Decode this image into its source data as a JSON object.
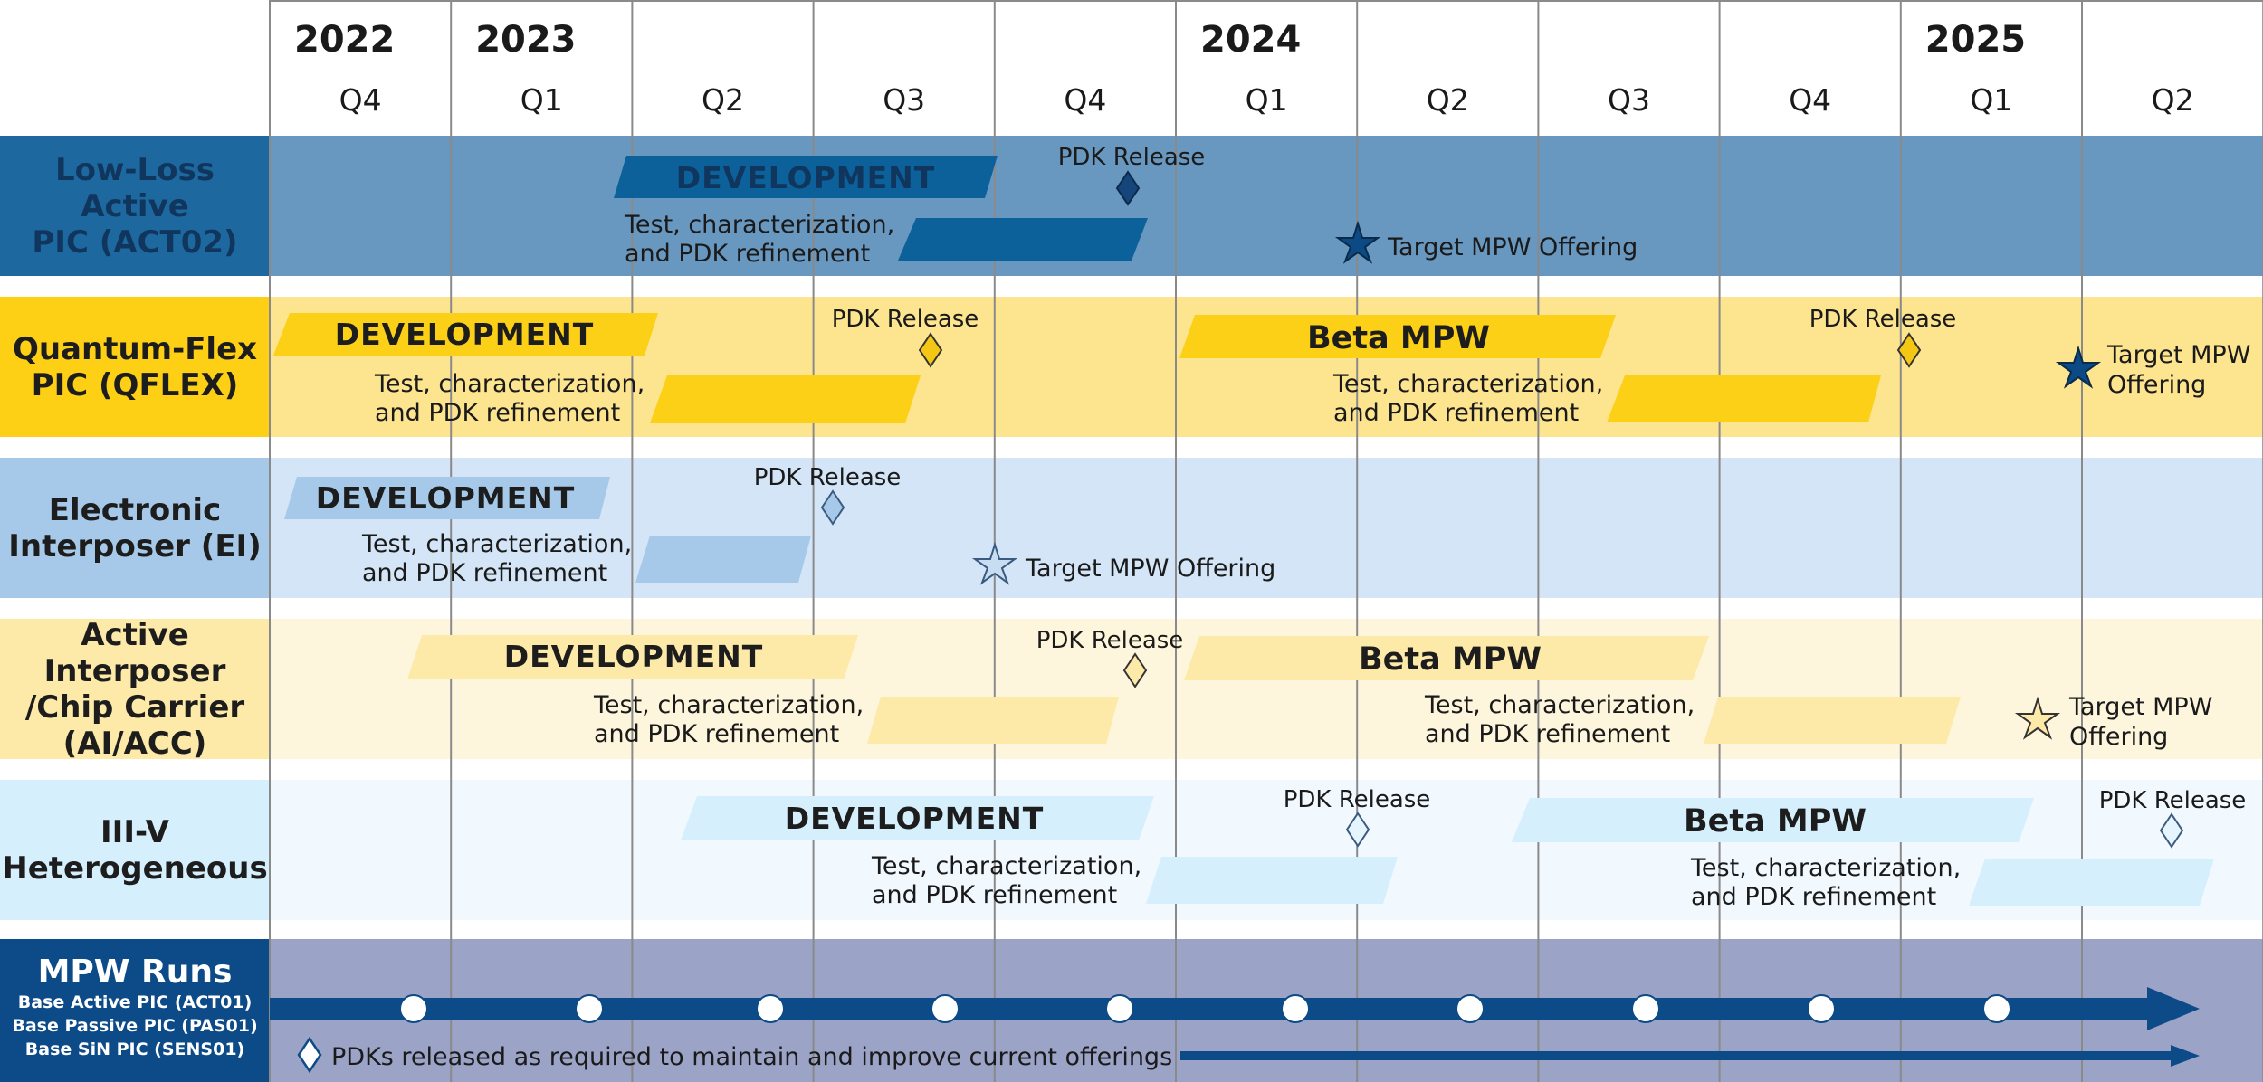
{
  "header": {
    "years": [
      {
        "label": "2022",
        "q": 0
      },
      {
        "label": "2023",
        "q": 1
      },
      {
        "label": "2024",
        "q": 5
      },
      {
        "label": "2025",
        "q": 9
      }
    ],
    "quarters": [
      "Q4",
      "Q1",
      "Q2",
      "Q3",
      "Q4",
      "Q1",
      "Q2",
      "Q3",
      "Q4",
      "Q1",
      "Q2"
    ]
  },
  "colors": {
    "act_band": "#6897c0",
    "act_label": "#1e68a0",
    "act_bar": "#0c619b",
    "qflex_band": "#fde48f",
    "qflex_label": "#fdd016",
    "qflex_bar": "#fcd016",
    "ei_band": "#d3e5f6",
    "ei_label": "#a6c9e9",
    "ei_bar": "#a6c9e9",
    "ai_band": "#fef6dc",
    "ai_label": "#fde9a8",
    "ai_bar": "#fde9a8",
    "iii_band": "#f1f8fe",
    "iii_label": "#d5effd",
    "iii_bar": "#d5effd",
    "mpw_band": "#9ba3c7",
    "mpw_label": "#0d4a88",
    "arrow": "#0d4a88",
    "star_dark": "#0c4a86"
  },
  "rows": [
    {
      "id": "act02",
      "label": "Low-Loss Active\nPIC (ACT02)",
      "label_color": "#10365e",
      "dev_label": "DEVELOPMENT",
      "test_label": "Test, characterization,\nand PDK refinement",
      "pdk_label": "PDK Release",
      "target_label": "Target MPW Offering"
    },
    {
      "id": "qflex",
      "label": "Quantum-Flex\nPIC (QFLEX)",
      "label_color": "#1d1d1d",
      "dev_label": "DEVELOPMENT",
      "test_label": "Test, characterization,\nand PDK refinement",
      "pdk_label": "PDK Release",
      "beta_label": "Beta MPW",
      "test2_label": "Test, characterization,\nand PDK refinement",
      "pdk2_label": "PDK Release",
      "target_label": "Target MPW\nOffering"
    },
    {
      "id": "ei",
      "label": "Electronic\nInterposer (EI)",
      "label_color": "#1d1d1d",
      "dev_label": "DEVELOPMENT",
      "test_label": "Test, characterization,\nand PDK refinement",
      "pdk_label": "PDK Release",
      "target_label": "Target MPW Offering"
    },
    {
      "id": "ai",
      "label": "Active Interposer\n/Chip Carrier\n(AI/ACC)",
      "label_color": "#1d1d1d",
      "dev_label": "DEVELOPMENT",
      "test_label": "Test, characterization,\nand PDK refinement",
      "pdk_label": "PDK Release",
      "beta_label": "Beta MPW",
      "test2_label": "Test, characterization,\nand PDK refinement",
      "target_label": "Target MPW\nOffering"
    },
    {
      "id": "iii",
      "label": "III-V\nHeterogeneous",
      "label_color": "#1d1d1d",
      "dev_label": "DEVELOPMENT",
      "test_label": "Test, characterization,\nand PDK refinement",
      "pdk_label": "PDK Release",
      "beta_label": "Beta MPW",
      "test2_label": "Test, characterization,\nand PDK refinement",
      "pdk2_label": "PDK Release"
    }
  ],
  "mpw": {
    "title": "MPW Runs",
    "subtitles": [
      "Base Active PIC (ACT01)",
      "Base Passive PIC (PAS01)",
      "Base SiN PIC (SENS01)"
    ],
    "pdk_note": "PDKs released as required to maintain and improve current offerings",
    "run_count": 10
  }
}
